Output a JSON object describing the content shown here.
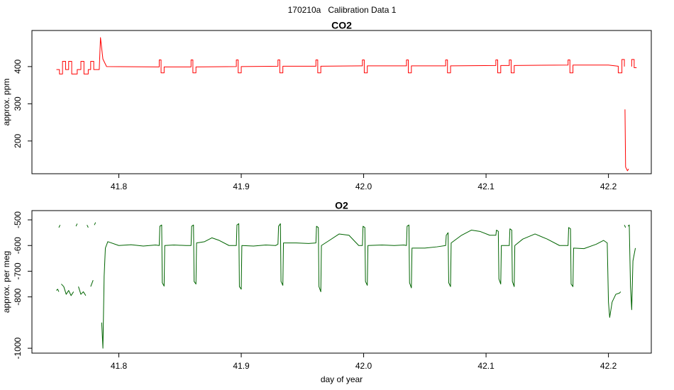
{
  "title": "170210a   Calibration Data 1",
  "chart_data": [
    {
      "type": "line",
      "title": "CO2",
      "ylabel": "approx. ppm",
      "xlim": [
        41.729,
        42.235
      ],
      "ylim": [
        112,
        497
      ],
      "xticks": [
        41.8,
        41.9,
        {
          "value": 42,
          "label": "42.0"
        },
        42.1,
        42.2
      ],
      "yticks": [
        200,
        300,
        400
      ],
      "x": [
        41.749,
        41.7515,
        41.7515,
        41.754,
        41.754,
        41.7565,
        41.7565,
        41.759,
        41.759,
        41.7615,
        41.7615,
        41.766,
        41.766,
        41.769,
        41.769,
        41.7715,
        41.7715,
        41.775,
        41.775,
        41.777,
        41.777,
        41.7795,
        41.7795,
        41.784,
        41.785,
        41.787,
        41.79,
        41.833,
        41.833,
        41.8345,
        41.8345,
        41.837,
        41.837,
        41.859,
        41.859,
        41.8605,
        41.8605,
        41.863,
        41.863,
        41.896,
        41.896,
        41.8975,
        41.8975,
        41.9,
        41.9,
        41.93,
        41.93,
        41.9315,
        41.9315,
        41.934,
        41.934,
        41.961,
        41.961,
        41.9625,
        41.9625,
        41.965,
        41.965,
        41.999,
        41.999,
        42.0005,
        42.0005,
        42.003,
        42.003,
        42.035,
        42.035,
        42.0365,
        42.0365,
        42.039,
        42.039,
        42.067,
        42.067,
        42.0685,
        42.0685,
        42.071,
        42.071,
        42.108,
        42.108,
        42.1095,
        42.1095,
        42.112,
        42.112,
        42.119,
        42.119,
        42.1205,
        42.1205,
        42.123,
        42.123,
        42.167,
        42.167,
        42.1685,
        42.1685,
        42.171,
        42.171,
        42.2,
        42.208,
        42.208,
        42.211,
        42.211,
        42.213,
        42.213,
        42.2135,
        42.2135,
        42.214,
        42.2155,
        42.2165,
        42.217,
        42.219,
        42.219,
        42.221,
        42.221,
        42.223
      ],
      "series": [
        {
          "color": "#ff0000",
          "values": [
            392,
            392,
            380,
            380,
            414,
            414,
            392,
            392,
            414,
            414,
            380,
            380,
            392,
            392,
            414,
            414,
            380,
            380,
            392,
            392,
            414,
            414,
            392,
            392,
            478,
            420,
            400,
            399,
            418,
            418,
            383,
            383,
            399,
            399,
            418,
            418,
            383,
            383,
            399,
            400,
            418,
            418,
            383,
            383,
            400,
            401,
            418,
            418,
            383,
            383,
            401,
            401,
            418,
            418,
            383,
            383,
            401,
            402,
            418,
            418,
            383,
            383,
            402,
            402,
            418,
            418,
            383,
            383,
            402,
            402,
            418,
            418,
            383,
            383,
            402,
            403,
            418,
            418,
            383,
            383,
            403,
            403,
            418,
            418,
            383,
            383,
            403,
            404,
            418,
            418,
            383,
            383,
            404,
            404,
            401,
            383,
            383,
            419,
            419,
            400,
            null,
            285,
            130,
            120,
            125,
            null,
            400,
            419,
            419,
            397,
            397
          ]
        }
      ]
    },
    {
      "type": "line",
      "title": "O2",
      "ylabel": "approx. per meg",
      "xlabel": "day of year",
      "xlim": [
        41.729,
        42.235
      ],
      "ylim": [
        -1019,
        -464
      ],
      "xticks": [
        41.8,
        41.9,
        {
          "value": 42,
          "label": "42.0"
        },
        42.1,
        42.2
      ],
      "yticks": [
        -1000,
        -800,
        -700,
        -600,
        -500
      ],
      "x": [
        41.749,
        41.75,
        41.751,
        41.7515,
        41.751,
        41.752,
        41.7525,
        41.753,
        41.755,
        41.757,
        41.759,
        41.761,
        41.763,
        41.764,
        41.765,
        41.766,
        41.7665,
        41.767,
        41.769,
        41.771,
        41.773,
        41.7735,
        41.774,
        41.775,
        41.7755,
        41.777,
        41.779,
        41.7795,
        41.78,
        41.781,
        41.7815,
        41.786,
        41.787,
        41.788,
        41.789,
        41.791,
        41.8,
        41.81,
        41.82,
        41.83,
        41.833,
        41.8335,
        41.835,
        41.8355,
        41.837,
        41.8375,
        41.845,
        41.855,
        41.859,
        41.8595,
        41.861,
        41.8615,
        41.863,
        41.8635,
        41.87,
        41.876,
        41.882,
        41.89,
        41.896,
        41.8965,
        41.898,
        41.8985,
        41.9,
        41.9005,
        41.91,
        41.92,
        41.928,
        41.93,
        41.9305,
        41.932,
        41.9325,
        41.934,
        41.9345,
        41.945,
        41.955,
        41.961,
        41.9615,
        41.963,
        41.9635,
        41.965,
        41.9655,
        41.972,
        41.98,
        41.988,
        41.996,
        41.999,
        41.9995,
        42.001,
        42.0015,
        42.003,
        42.0035,
        42.015,
        42.025,
        42.033,
        42.035,
        42.0355,
        42.037,
        42.0375,
        42.039,
        42.0395,
        42.05,
        42.06,
        42.067,
        42.0675,
        42.069,
        42.0695,
        42.071,
        42.0715,
        42.08,
        42.088,
        42.095,
        42.103,
        42.108,
        42.1085,
        42.11,
        42.1105,
        42.112,
        42.1125,
        42.119,
        42.1195,
        42.121,
        42.1215,
        42.123,
        42.1235,
        42.13,
        42.14,
        42.15,
        42.16,
        42.167,
        42.1675,
        42.169,
        42.1695,
        42.171,
        42.1715,
        42.18,
        42.19,
        42.196,
        42.199,
        42.2,
        42.201,
        42.203,
        42.206,
        42.209,
        42.21,
        42.2105,
        42.213,
        42.214,
        42.2145,
        42.216,
        42.217,
        42.218,
        42.219,
        42.22,
        42.222
      ],
      "series": [
        {
          "color": "#006400",
          "values": [
            -775,
            -770,
            -780,
            null,
            -530,
            -520,
            null,
            -750,
            -760,
            -790,
            -775,
            -795,
            -780,
            null,
            -525,
            -515,
            null,
            -760,
            -790,
            -780,
            -795,
            null,
            -520,
            -530,
            null,
            -760,
            -735,
            null,
            -520,
            -510,
            null,
            -900,
            -1000,
            -720,
            -610,
            -585,
            -600,
            -597,
            -602,
            -598,
            -600,
            -525,
            -520,
            -745,
            -758,
            -600,
            -598,
            -600,
            -600,
            -525,
            -520,
            -740,
            -750,
            -590,
            -585,
            -570,
            -580,
            -600,
            -600,
            -520,
            -515,
            -760,
            -770,
            -600,
            -602,
            -598,
            -600,
            -595,
            -525,
            -515,
            -740,
            -755,
            -590,
            -590,
            -592,
            -590,
            -525,
            -530,
            -760,
            -780,
            -600,
            -580,
            -555,
            -560,
            -600,
            -600,
            -525,
            -530,
            -740,
            -755,
            -600,
            -598,
            -600,
            -598,
            -600,
            -525,
            -520,
            -745,
            -765,
            -610,
            -610,
            -605,
            -600,
            -560,
            -550,
            -745,
            -760,
            -590,
            -560,
            -540,
            -545,
            -560,
            -560,
            -540,
            -545,
            -730,
            -750,
            -600,
            -600,
            -535,
            -540,
            -740,
            -760,
            -600,
            -575,
            -555,
            -575,
            -600,
            -600,
            -530,
            -535,
            -750,
            -760,
            -610,
            -612,
            -595,
            -580,
            -590,
            -820,
            -880,
            -820,
            -790,
            -785,
            -780,
            null,
            -520,
            -530,
            null,
            -525,
            -520,
            -760,
            -850,
            -660,
            -610
          ]
        }
      ]
    }
  ]
}
